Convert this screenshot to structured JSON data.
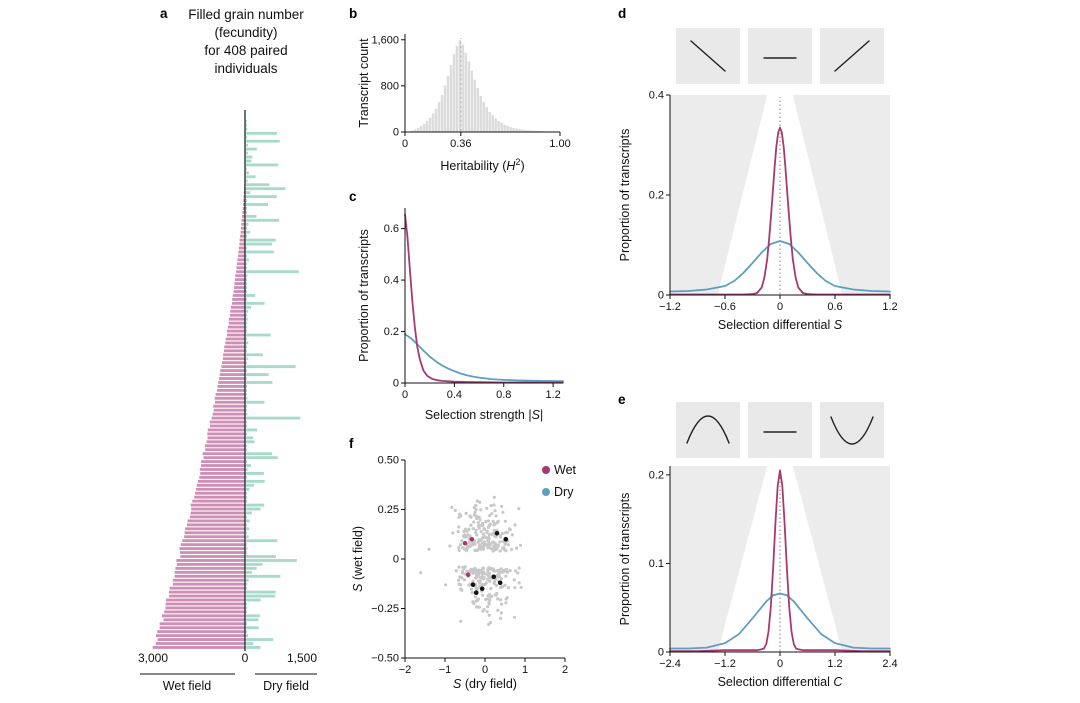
{
  "figure": {
    "panels": {
      "a": {
        "label": "a",
        "title_lines": [
          "Filled grain number",
          "(fecundity)",
          "for 408 paired",
          "individuals"
        ]
      },
      "b": {
        "label": "b"
      },
      "c": {
        "label": "c"
      },
      "d": {
        "label": "d"
      },
      "e": {
        "label": "e"
      },
      "f": {
        "label": "f"
      }
    }
  },
  "colors": {
    "wet": "#a63a70",
    "wet_fill": "#cf8fb4",
    "dry": "#5b9fc0",
    "dry_fill": "#a8dacb",
    "hist": "#dcdcdc",
    "fan": "#ececec",
    "inset_bg": "#e9e9e9",
    "axis": "#111111",
    "gray_point": "#c8c8c8",
    "black_point": "#141414"
  },
  "chart_data": [
    {
      "panel": "a",
      "type": "bar",
      "subtype": "diverging-horizontal",
      "title": "Filled grain number (fecundity) for 408 paired individuals",
      "n_individuals": 408,
      "left": {
        "name": "Wet field",
        "axis_max": 3000,
        "tick_label": "3,000"
      },
      "right": {
        "name": "Dry field",
        "axis_max": 1500,
        "tick_label": "1,500"
      },
      "center_tick_label": "0",
      "gen": {
        "bars": 134,
        "seed": 9,
        "wet_zero_frac": 0.08,
        "wet_exponent": 1.55,
        "dry_min": 25,
        "dry_max": 1480,
        "dry_exponent": 5
      }
    },
    {
      "panel": "b",
      "type": "bar",
      "subtype": "histogram",
      "ylabel": "Transcript count",
      "xlabel": "Heritability (H²)",
      "xlabel_parts": [
        {
          "t": "Heritability ("
        },
        {
          "t": "H",
          "i": true
        },
        {
          "t": "2",
          "sup": true
        },
        {
          "t": ")"
        }
      ],
      "xlim": [
        0,
        1
      ],
      "ylim": [
        0,
        1700
      ],
      "xticks": [
        {
          "v": 0,
          "label": "0"
        },
        {
          "v": 0.36,
          "label": "0.36"
        },
        {
          "v": 1,
          "label": "1.00"
        }
      ],
      "yticks": [
        {
          "v": 0,
          "label": "0"
        },
        {
          "v": 800,
          "label": "800"
        },
        {
          "v": 1600,
          "label": "1,600"
        }
      ],
      "vline": 0.36,
      "bins": 52,
      "profile": [
        [
          0,
          0
        ],
        [
          0.04,
          15
        ],
        [
          0.08,
          60
        ],
        [
          0.12,
          130
        ],
        [
          0.16,
          235
        ],
        [
          0.2,
          390
        ],
        [
          0.24,
          640
        ],
        [
          0.28,
          980
        ],
        [
          0.32,
          1380
        ],
        [
          0.35,
          1580
        ],
        [
          0.36,
          1600
        ],
        [
          0.38,
          1490
        ],
        [
          0.42,
          1170
        ],
        [
          0.46,
          840
        ],
        [
          0.5,
          560
        ],
        [
          0.55,
          340
        ],
        [
          0.6,
          200
        ],
        [
          0.65,
          120
        ],
        [
          0.7,
          72
        ],
        [
          0.75,
          45
        ],
        [
          0.8,
          28
        ],
        [
          0.85,
          18
        ],
        [
          0.9,
          11
        ],
        [
          0.95,
          6
        ],
        [
          1,
          3
        ]
      ]
    },
    {
      "panel": "c",
      "type": "line",
      "ylabel": "Proportion of transcripts",
      "xlabel": "Selection strength |S|",
      "xlabel_parts": [
        {
          "t": "Selection strength |"
        },
        {
          "t": "S",
          "i": true
        },
        {
          "t": "|"
        }
      ],
      "xlim": [
        0,
        1.28
      ],
      "ylim": [
        0,
        0.68
      ],
      "xticks": [
        {
          "v": 0,
          "label": "0"
        },
        {
          "v": 0.4,
          "label": "0.4"
        },
        {
          "v": 0.8,
          "label": "0.8"
        },
        {
          "v": 1.2,
          "label": "1.2"
        }
      ],
      "yticks": [
        {
          "v": 0,
          "label": "0"
        },
        {
          "v": 0.2,
          "label": "0.2"
        },
        {
          "v": 0.4,
          "label": "0.4"
        },
        {
          "v": 0.6,
          "label": "0.6"
        }
      ],
      "series": [
        {
          "name": "Wet",
          "color_key": "wet",
          "points": [
            [
              0,
              0.655
            ],
            [
              0.02,
              0.565
            ],
            [
              0.04,
              0.44
            ],
            [
              0.06,
              0.315
            ],
            [
              0.08,
              0.215
            ],
            [
              0.1,
              0.14
            ],
            [
              0.12,
              0.092
            ],
            [
              0.15,
              0.048
            ],
            [
              0.18,
              0.028
            ],
            [
              0.22,
              0.016
            ],
            [
              0.26,
              0.011
            ],
            [
              0.3,
              0.008
            ],
            [
              0.4,
              0.005
            ],
            [
              0.5,
              0.004
            ],
            [
              0.6,
              0.003
            ],
            [
              0.8,
              0.002
            ],
            [
              1,
              0.002
            ],
            [
              1.28,
              0.002
            ]
          ]
        },
        {
          "name": "Dry",
          "color_key": "dry",
          "points": [
            [
              0,
              0.19
            ],
            [
              0.05,
              0.173
            ],
            [
              0.1,
              0.15
            ],
            [
              0.15,
              0.126
            ],
            [
              0.2,
              0.103
            ],
            [
              0.25,
              0.084
            ],
            [
              0.3,
              0.068
            ],
            [
              0.35,
              0.056
            ],
            [
              0.4,
              0.046
            ],
            [
              0.45,
              0.037
            ],
            [
              0.5,
              0.03
            ],
            [
              0.55,
              0.025
            ],
            [
              0.6,
              0.021
            ],
            [
              0.7,
              0.015
            ],
            [
              0.8,
              0.012
            ],
            [
              0.9,
              0.01
            ],
            [
              1,
              0.009
            ],
            [
              1.1,
              0.008
            ],
            [
              1.28,
              0.007
            ]
          ]
        }
      ]
    },
    {
      "panel": "d",
      "type": "line",
      "subtype": "density",
      "ylabel": "Proportion of transcripts",
      "xlabel": "Selection differential S",
      "xlabel_parts": [
        {
          "t": "Selection differential "
        },
        {
          "t": "S",
          "i": true
        }
      ],
      "xlim": [
        -1.2,
        1.2
      ],
      "ylim": [
        0,
        0.4
      ],
      "xticks": [
        {
          "v": -1.2,
          "label": "−1.2"
        },
        {
          "v": -0.6,
          "label": "−0.6"
        },
        {
          "v": 0,
          "label": "0"
        },
        {
          "v": 0.6,
          "label": "0.6"
        },
        {
          "v": 1.2,
          "label": "1.2"
        }
      ],
      "yticks": [
        {
          "v": 0,
          "label": "0"
        },
        {
          "v": 0.2,
          "label": "0.2"
        },
        {
          "v": 0.4,
          "label": "0.4"
        }
      ],
      "vline": 0,
      "insets": [
        "negative-slope",
        "flat-line",
        "positive-slope"
      ],
      "fan": {
        "top_half_width": 0.14,
        "bottom_half_width": 0.68
      },
      "series": [
        {
          "name": "Wet",
          "color_key": "wet",
          "points": [
            [
              -1.2,
              0.001
            ],
            [
              -0.9,
              0.001
            ],
            [
              -0.7,
              0.001
            ],
            [
              -0.5,
              0.001
            ],
            [
              -0.4,
              0.001
            ],
            [
              -0.3,
              0.002
            ],
            [
              -0.25,
              0.004
            ],
            [
              -0.2,
              0.015
            ],
            [
              -0.17,
              0.035
            ],
            [
              -0.14,
              0.072
            ],
            [
              -0.12,
              0.109
            ],
            [
              -0.1,
              0.153
            ],
            [
              -0.08,
              0.203
            ],
            [
              -0.06,
              0.253
            ],
            [
              -0.04,
              0.296
            ],
            [
              -0.02,
              0.325
            ],
            [
              0,
              0.335
            ],
            [
              0.02,
              0.325
            ],
            [
              0.04,
              0.296
            ],
            [
              0.06,
              0.253
            ],
            [
              0.08,
              0.203
            ],
            [
              0.1,
              0.153
            ],
            [
              0.12,
              0.109
            ],
            [
              0.14,
              0.072
            ],
            [
              0.17,
              0.035
            ],
            [
              0.2,
              0.015
            ],
            [
              0.25,
              0.004
            ],
            [
              0.3,
              0.002
            ],
            [
              0.4,
              0.001
            ],
            [
              0.5,
              0.001
            ],
            [
              0.7,
              0.001
            ],
            [
              0.9,
              0.001
            ],
            [
              1.2,
              0.001
            ]
          ]
        },
        {
          "name": "Dry",
          "color_key": "dry",
          "points": [
            [
              -1.2,
              0.007
            ],
            [
              -1,
              0.008
            ],
            [
              -0.8,
              0.011
            ],
            [
              -0.6,
              0.018
            ],
            [
              -0.5,
              0.028
            ],
            [
              -0.4,
              0.044
            ],
            [
              -0.3,
              0.064
            ],
            [
              -0.2,
              0.085
            ],
            [
              -0.1,
              0.102
            ],
            [
              0,
              0.108
            ],
            [
              0.1,
              0.102
            ],
            [
              0.2,
              0.085
            ],
            [
              0.3,
              0.064
            ],
            [
              0.4,
              0.044
            ],
            [
              0.5,
              0.028
            ],
            [
              0.6,
              0.018
            ],
            [
              0.8,
              0.011
            ],
            [
              1,
              0.008
            ],
            [
              1.2,
              0.007
            ]
          ]
        }
      ]
    },
    {
      "panel": "e",
      "type": "line",
      "subtype": "density",
      "ylabel": "Proportion of transcripts",
      "xlabel": "Selection differential C",
      "xlabel_parts": [
        {
          "t": "Selection differential "
        },
        {
          "t": "C",
          "i": true
        }
      ],
      "xlim": [
        -2.4,
        2.4
      ],
      "ylim": [
        0,
        0.21
      ],
      "xticks": [
        {
          "v": -2.4,
          "label": "−2.4"
        },
        {
          "v": -1.2,
          "label": "−1.2"
        },
        {
          "v": 0,
          "label": "0"
        },
        {
          "v": 1.2,
          "label": "1.2"
        },
        {
          "v": 2.4,
          "label": "2.4"
        }
      ],
      "yticks": [
        {
          "v": 0,
          "label": "0"
        },
        {
          "v": 0.1,
          "label": "0.1"
        },
        {
          "v": 0.2,
          "label": "0.2"
        }
      ],
      "vline": 0,
      "insets": [
        "concave-down",
        "flat-line",
        "concave-up"
      ],
      "fan": {
        "top_half_width": 0.28,
        "bottom_half_width": 1.36
      },
      "series": [
        {
          "name": "Wet",
          "color_key": "wet",
          "points": [
            [
              -2.4,
              0.001
            ],
            [
              -1.8,
              0.001
            ],
            [
              -1.2,
              0.002
            ],
            [
              -0.8,
              0.002
            ],
            [
              -0.5,
              0.002
            ],
            [
              -0.4,
              0.003
            ],
            [
              -0.35,
              0.004
            ],
            [
              -0.3,
              0.009
            ],
            [
              -0.25,
              0.023
            ],
            [
              -0.2,
              0.051
            ],
            [
              -0.15,
              0.094
            ],
            [
              -0.1,
              0.145
            ],
            [
              -0.05,
              0.188
            ],
            [
              0,
              0.205
            ],
            [
              0.05,
              0.188
            ],
            [
              0.1,
              0.145
            ],
            [
              0.15,
              0.094
            ],
            [
              0.2,
              0.051
            ],
            [
              0.25,
              0.023
            ],
            [
              0.3,
              0.009
            ],
            [
              0.35,
              0.004
            ],
            [
              0.4,
              0.003
            ],
            [
              0.5,
              0.002
            ],
            [
              0.8,
              0.002
            ],
            [
              1.2,
              0.002
            ],
            [
              1.8,
              0.001
            ],
            [
              2.4,
              0.001
            ]
          ]
        },
        {
          "name": "Dry",
          "color_key": "dry",
          "points": [
            [
              -2.4,
              0.004
            ],
            [
              -2,
              0.004
            ],
            [
              -1.6,
              0.005
            ],
            [
              -1.2,
              0.01
            ],
            [
              -0.9,
              0.02
            ],
            [
              -0.6,
              0.038
            ],
            [
              -0.3,
              0.057
            ],
            [
              -0.15,
              0.064
            ],
            [
              0,
              0.066
            ],
            [
              0.15,
              0.064
            ],
            [
              0.3,
              0.057
            ],
            [
              0.6,
              0.038
            ],
            [
              0.9,
              0.02
            ],
            [
              1.2,
              0.01
            ],
            [
              1.6,
              0.005
            ],
            [
              2,
              0.004
            ],
            [
              2.4,
              0.004
            ]
          ]
        }
      ]
    },
    {
      "panel": "f",
      "type": "scatter",
      "ylabel": "S (wet field)",
      "ylabel_parts": [
        {
          "t": "S",
          "i": true
        },
        {
          "t": " (wet field)"
        }
      ],
      "xlabel": "S (dry field)",
      "xlabel_parts": [
        {
          "t": "S",
          "i": true
        },
        {
          "t": " (dry field)"
        }
      ],
      "xlim": [
        -2,
        2
      ],
      "ylim": [
        -0.5,
        0.5
      ],
      "xticks": [
        {
          "v": -2,
          "label": "−2"
        },
        {
          "v": -1,
          "label": "−1"
        },
        {
          "v": 0,
          "label": "0"
        },
        {
          "v": 1,
          "label": "1"
        },
        {
          "v": 2,
          "label": "2"
        }
      ],
      "yticks": [
        {
          "v": 0.5,
          "label": "0.50"
        },
        {
          "v": 0.25,
          "label": "0.25"
        },
        {
          "v": 0,
          "label": "0"
        },
        {
          "v": -0.25,
          "label": "−0.25"
        },
        {
          "v": -0.5,
          "label": "−0.50"
        }
      ],
      "legend": [
        {
          "label": "Wet",
          "color_key": "wet"
        },
        {
          "label": "Dry",
          "color_key": "dry"
        }
      ],
      "gen": {
        "n": 380,
        "seed": 23
      },
      "highlight_wet": [
        [
          -0.5,
          0.08
        ],
        [
          -0.33,
          0.1
        ],
        [
          -0.42,
          -0.08
        ]
      ],
      "highlight_black": [
        [
          -0.3,
          -0.13
        ],
        [
          -0.22,
          -0.17
        ],
        [
          -0.07,
          -0.15
        ],
        [
          0.22,
          -0.09
        ],
        [
          0.38,
          -0.12
        ],
        [
          0.3,
          0.13
        ],
        [
          0.52,
          0.1
        ]
      ]
    }
  ]
}
